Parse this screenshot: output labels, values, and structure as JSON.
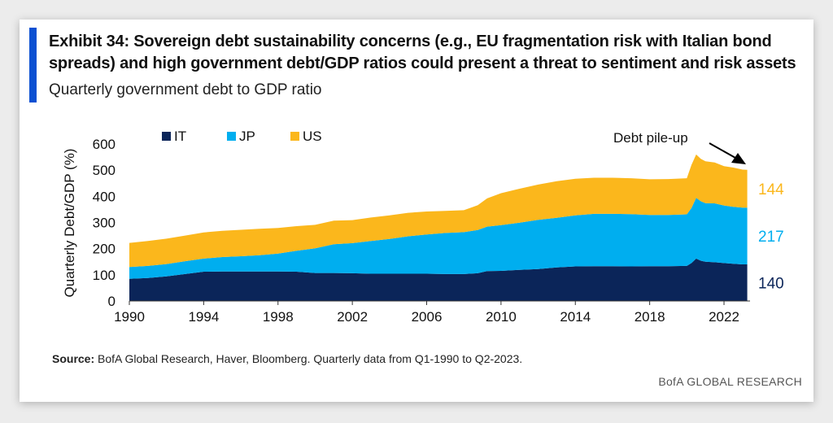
{
  "exhibit": {
    "title": "Exhibit 34: Sovereign  debt sustainability concerns (e.g., EU fragmentation risk with Italian bond spreads)  and high government  debt/GDP ratios could present a threat to sentiment and risk assets",
    "subtitle": "Quarterly government  debt to GDP ratio"
  },
  "source": {
    "label": "Source:",
    "text": " BofA Global Research, Haver, Bloomberg. Quarterly data from Q1-1990 to Q2-2023."
  },
  "brand": "BofA GLOBAL RESEARCH",
  "colors": {
    "IT": "#0b2559",
    "JP": "#00aeef",
    "US": "#fbb71c",
    "accent": "#0a50d2"
  },
  "chart_data": {
    "type": "area",
    "stacked": true,
    "ylabel": "Quarterly Debt/GDP (%)",
    "xlabel": "",
    "ylim": [
      0,
      600
    ],
    "yticks": [
      0,
      100,
      200,
      300,
      400,
      500,
      600
    ],
    "xlim": [
      1990,
      2023.4
    ],
    "xticks": [
      1990,
      1994,
      1998,
      2002,
      2006,
      2010,
      2014,
      2018,
      2022
    ],
    "legend": "top-left",
    "x": [
      1990,
      1991,
      1992,
      1993,
      1994,
      1995,
      1996,
      1997,
      1998,
      1999,
      2000,
      2001,
      2002,
      2003,
      2004,
      2005,
      2006,
      2007,
      2008,
      2008.75,
      2009.25,
      2010,
      2011,
      2012,
      2013,
      2014,
      2015,
      2016,
      2017,
      2018,
      2019,
      2020,
      2020.25,
      2020.5,
      2020.75,
      2021,
      2021.5,
      2022,
      2022.5,
      2023,
      2023.25
    ],
    "series": [
      {
        "name": "IT",
        "values": [
          85,
          88,
          94,
          103,
          112,
          113,
          113,
          113,
          113,
          112,
          107,
          107,
          106,
          104,
          104,
          104,
          104,
          103,
          103,
          106,
          114,
          115,
          119,
          122,
          128,
          132,
          133,
          133,
          132,
          133,
          133,
          134,
          145,
          162,
          154,
          150,
          148,
          145,
          142,
          140,
          140
        ]
      },
      {
        "name": "JP",
        "values": [
          45,
          46,
          47,
          49,
          50,
          55,
          58,
          62,
          68,
          80,
          94,
          110,
          115,
          125,
          133,
          143,
          150,
          157,
          160,
          165,
          170,
          175,
          180,
          188,
          190,
          195,
          200,
          200,
          200,
          196,
          196,
          197,
          210,
          232,
          227,
          224,
          225,
          220,
          218,
          217,
          217
        ]
      },
      {
        "name": "US",
        "values": [
          92,
          95,
          97,
          98,
          100,
          100,
          101,
          101,
          98,
          94,
          90,
          90,
          88,
          90,
          90,
          90,
          88,
          84,
          84,
          95,
          108,
          122,
          130,
          135,
          140,
          140,
          138,
          138,
          137,
          136,
          137,
          138,
          165,
          166,
          162,
          160,
          156,
          150,
          150,
          145,
          144
        ]
      }
    ],
    "end_labels": [
      {
        "series": "US",
        "value": "144"
      },
      {
        "series": "JP",
        "value": "217"
      },
      {
        "series": "IT",
        "value": "140"
      }
    ],
    "legend_entries": [
      "IT",
      "JP",
      "US"
    ],
    "annotation": "Debt pile-up"
  }
}
